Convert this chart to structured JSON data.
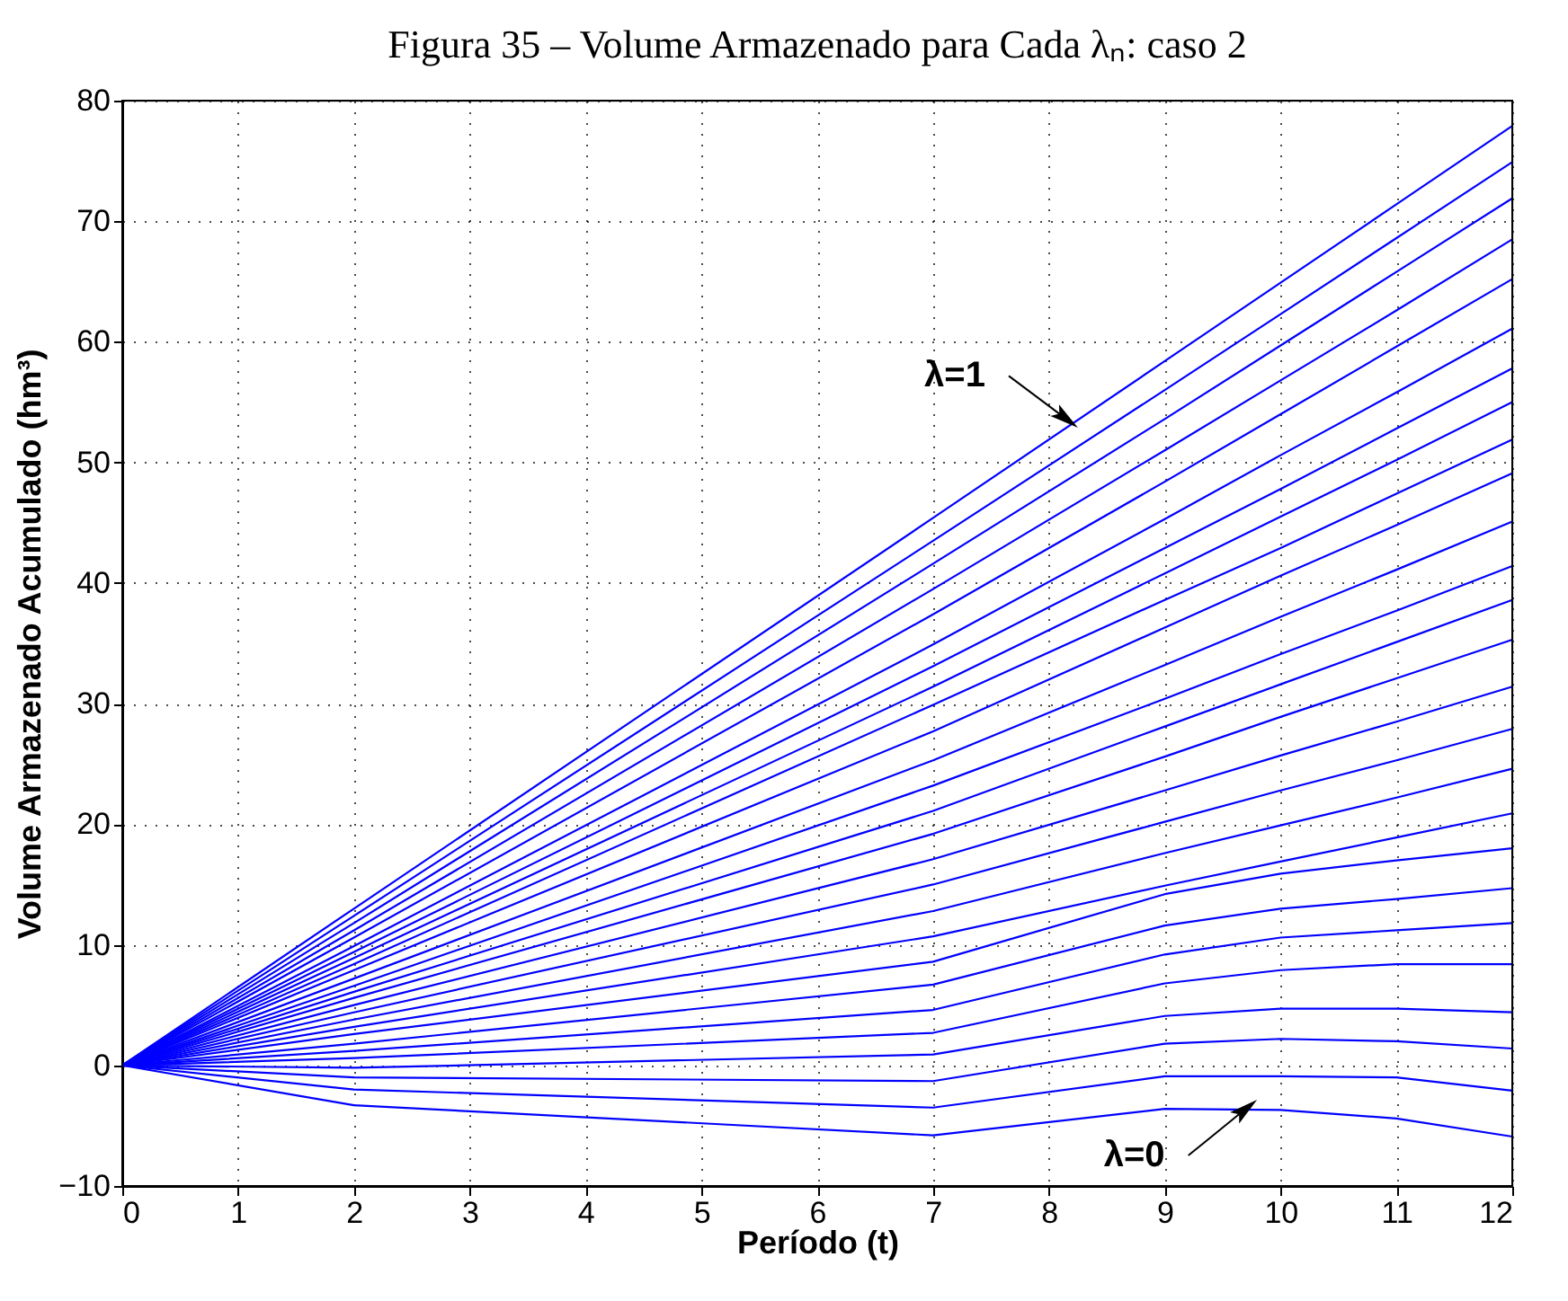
{
  "chart_data": {
    "type": "line",
    "title": "Figura 35 – Volume Armazenado para Cada λₙ: caso 2",
    "xlabel": "Período (t)",
    "ylabel": "Volume Armazenado Acumulado (hm³)",
    "x": [
      0,
      2,
      7,
      9,
      10,
      11,
      12
    ],
    "series": [
      {
        "color": "#0000ff",
        "values": [
          0,
          13.0,
          45.4,
          58.4,
          64.9,
          71.4,
          77.9
        ]
      },
      {
        "color": "#0000ff",
        "values": [
          0,
          12.4,
          43.5,
          56.0,
          62.3,
          68.6,
          74.9
        ]
      },
      {
        "color": "#0000ff",
        "values": [
          0,
          11.8,
          41.6,
          53.6,
          59.7,
          65.8,
          71.9
        ]
      },
      {
        "color": "#0000ff",
        "values": [
          0,
          11.2,
          39.5,
          51.0,
          56.8,
          62.6,
          68.5
        ]
      },
      {
        "color": "#0000ff",
        "values": [
          0,
          10.6,
          37.4,
          48.4,
          54.0,
          59.6,
          65.2
        ]
      },
      {
        "color": "#0000ff",
        "values": [
          0,
          9.9,
          34.9,
          45.3,
          50.6,
          55.8,
          61.1
        ]
      },
      {
        "color": "#0000ff",
        "values": [
          0,
          9.4,
          33.1,
          42.9,
          47.8,
          52.8,
          57.8
        ]
      },
      {
        "color": "#0000ff",
        "values": [
          0,
          8.9,
          31.4,
          40.8,
          45.5,
          50.2,
          55.0
        ]
      },
      {
        "color": "#0000ff",
        "values": [
          0,
          8.4,
          29.9,
          38.6,
          42.9,
          47.4,
          51.9
        ]
      },
      {
        "color": "#0000ff",
        "values": [
          0,
          7.9,
          27.7,
          36.3,
          40.6,
          44.8,
          49.1
        ]
      },
      {
        "color": "#0000ff",
        "values": [
          0,
          7.2,
          25.3,
          33.2,
          37.2,
          41.1,
          45.1
        ]
      },
      {
        "color": "#0000ff",
        "values": [
          0,
          6.6,
          23.2,
          30.4,
          34.1,
          37.7,
          41.4
        ]
      },
      {
        "color": "#0000ff",
        "values": [
          0,
          6.1,
          21.1,
          28.1,
          31.6,
          35.1,
          38.6
        ]
      },
      {
        "color": "#0000ff",
        "values": [
          0,
          5.6,
          19.2,
          25.6,
          28.9,
          32.1,
          35.3
        ]
      },
      {
        "color": "#0000ff",
        "values": [
          0,
          5.0,
          17.1,
          22.8,
          25.7,
          28.5,
          31.4
        ]
      },
      {
        "color": "#0000ff",
        "values": [
          0,
          4.4,
          15.0,
          20.2,
          22.8,
          25.3,
          27.9
        ]
      },
      {
        "color": "#0000ff",
        "values": [
          0,
          3.8,
          12.8,
          17.6,
          19.9,
          22.2,
          24.6
        ]
      },
      {
        "color": "#0000ff",
        "values": [
          0,
          3.2,
          10.7,
          14.9,
          16.9,
          18.9,
          20.9
        ]
      },
      {
        "color": "#0000ff",
        "values": [
          0,
          2.6,
          8.6,
          14.2,
          15.9,
          17.0,
          18.0
        ]
      },
      {
        "color": "#0000ff",
        "values": [
          0,
          1.8,
          6.7,
          11.6,
          13.0,
          13.8,
          14.7
        ]
      },
      {
        "color": "#0000ff",
        "values": [
          0,
          1.2,
          4.6,
          9.2,
          10.6,
          11.2,
          11.8
        ]
      },
      {
        "color": "#0000ff",
        "values": [
          0,
          0.6,
          2.7,
          6.8,
          7.9,
          8.4,
          8.4
        ]
      },
      {
        "color": "#0000ff",
        "values": [
          0,
          -0.2,
          0.9,
          4.1,
          4.7,
          4.7,
          4.4
        ]
      },
      {
        "color": "#0000ff",
        "values": [
          0,
          -1.0,
          -1.3,
          1.8,
          2.2,
          2.0,
          1.4
        ]
      },
      {
        "color": "#0000ff",
        "values": [
          0,
          -2.0,
          -3.5,
          -0.9,
          -0.9,
          -1.0,
          -2.1
        ]
      },
      {
        "color": "#0000ff",
        "values": [
          0,
          -3.3,
          -5.8,
          -3.6,
          -3.7,
          -4.4,
          -5.9
        ]
      }
    ],
    "annotations": [
      {
        "text": "λ=1",
        "x": 8.15,
        "y": 53.6
      },
      {
        "text": "λ=0",
        "x": 9.7,
        "y": -3.6
      }
    ],
    "xlim": [
      0,
      12
    ],
    "xticks": [
      0,
      1,
      2,
      3,
      4,
      5,
      6,
      7,
      8,
      9,
      10,
      11,
      12
    ],
    "ylim": [
      -10,
      80
    ],
    "yticks": [
      -10,
      0,
      10,
      20,
      30,
      40,
      50,
      60,
      70,
      80
    ],
    "grid": true,
    "line_style": "solid",
    "legend": false
  }
}
